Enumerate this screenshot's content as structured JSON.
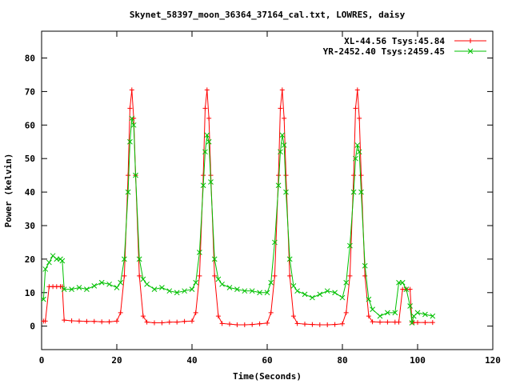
{
  "chart_data": {
    "type": "line",
    "title": "Skynet_58397_moon_36364_37164_cal.txt, LOWRES, daisy",
    "xlabel": "Time(Seconds)",
    "ylabel": "Power (kelvin)",
    "xlim": [
      0,
      120
    ],
    "ylim": [
      -7,
      88
    ],
    "xticks": [
      0,
      20,
      40,
      60,
      80,
      100,
      120
    ],
    "yticks": [
      0,
      10,
      20,
      30,
      40,
      50,
      60,
      70,
      80
    ],
    "grid": false,
    "legend_position": "top-right",
    "x": [
      0.5,
      1,
      2,
      3,
      4,
      5,
      5.5,
      6,
      8,
      10,
      12,
      14,
      16,
      18,
      20,
      21,
      22,
      23,
      23.5,
      24,
      24.5,
      25,
      26,
      27,
      28,
      30,
      32,
      34,
      36,
      38,
      40,
      41,
      42,
      43,
      43.5,
      44,
      44.5,
      45,
      46,
      47,
      48,
      50,
      52,
      54,
      56,
      58,
      60,
      61,
      62,
      63,
      63.5,
      64,
      64.5,
      65,
      66,
      67,
      68,
      70,
      72,
      74,
      76,
      78,
      80,
      81,
      82,
      83,
      83.5,
      84,
      84.5,
      85,
      86,
      87,
      88,
      90,
      92,
      94,
      95,
      96,
      97,
      98,
      98.5,
      99,
      100,
      102,
      104
    ],
    "series": [
      {
        "name": "XL-44.56 Tsys:45.84",
        "color": "#ff0000",
        "marker": "plus",
        "values": [
          1.5,
          1.5,
          11.8,
          11.8,
          11.8,
          11.8,
          11.8,
          1.8,
          1.6,
          1.5,
          1.4,
          1.4,
          1.3,
          1.3,
          1.5,
          4,
          15,
          45,
          65,
          70.5,
          62,
          45,
          15,
          3,
          1.2,
          1.0,
          1.0,
          1.2,
          1.2,
          1.4,
          1.5,
          4,
          15,
          45,
          65,
          70.5,
          62,
          45,
          15,
          3,
          0.8,
          0.6,
          0.4,
          0.4,
          0.5,
          0.7,
          0.9,
          4,
          15,
          45,
          65,
          70.5,
          62,
          45,
          15,
          3,
          0.8,
          0.6,
          0.5,
          0.4,
          0.4,
          0.5,
          0.7,
          4,
          15,
          45,
          65,
          70.5,
          62,
          45,
          15,
          3,
          1.3,
          1.2,
          1.2,
          1.2,
          1.2,
          11,
          11,
          11,
          1.2,
          1.1,
          1.1,
          1.1,
          1.1
        ]
      },
      {
        "name": "YR-2452.40 Tsys:2459.45",
        "color": "#00c000",
        "marker": "x",
        "values": [
          8,
          17,
          19,
          21,
          20,
          20,
          19.5,
          11,
          11,
          11.5,
          11,
          12,
          13,
          12.5,
          11.5,
          13,
          20,
          40,
          55,
          62,
          60,
          45,
          20,
          14,
          12.5,
          11,
          11.5,
          10.5,
          10,
          10.5,
          11,
          13,
          22,
          42,
          52,
          57,
          55,
          43,
          20,
          14,
          12.5,
          11.5,
          11,
          10.5,
          10.5,
          10,
          10,
          13,
          25,
          42,
          52,
          57,
          54,
          40,
          20,
          12,
          10.5,
          9.5,
          8.5,
          9.5,
          10.5,
          10,
          8.5,
          13,
          24,
          40,
          50,
          54,
          52,
          40,
          18,
          8,
          5,
          3,
          4,
          4,
          13,
          13,
          11,
          6,
          1,
          3,
          4,
          3.5,
          3
        ]
      }
    ]
  }
}
